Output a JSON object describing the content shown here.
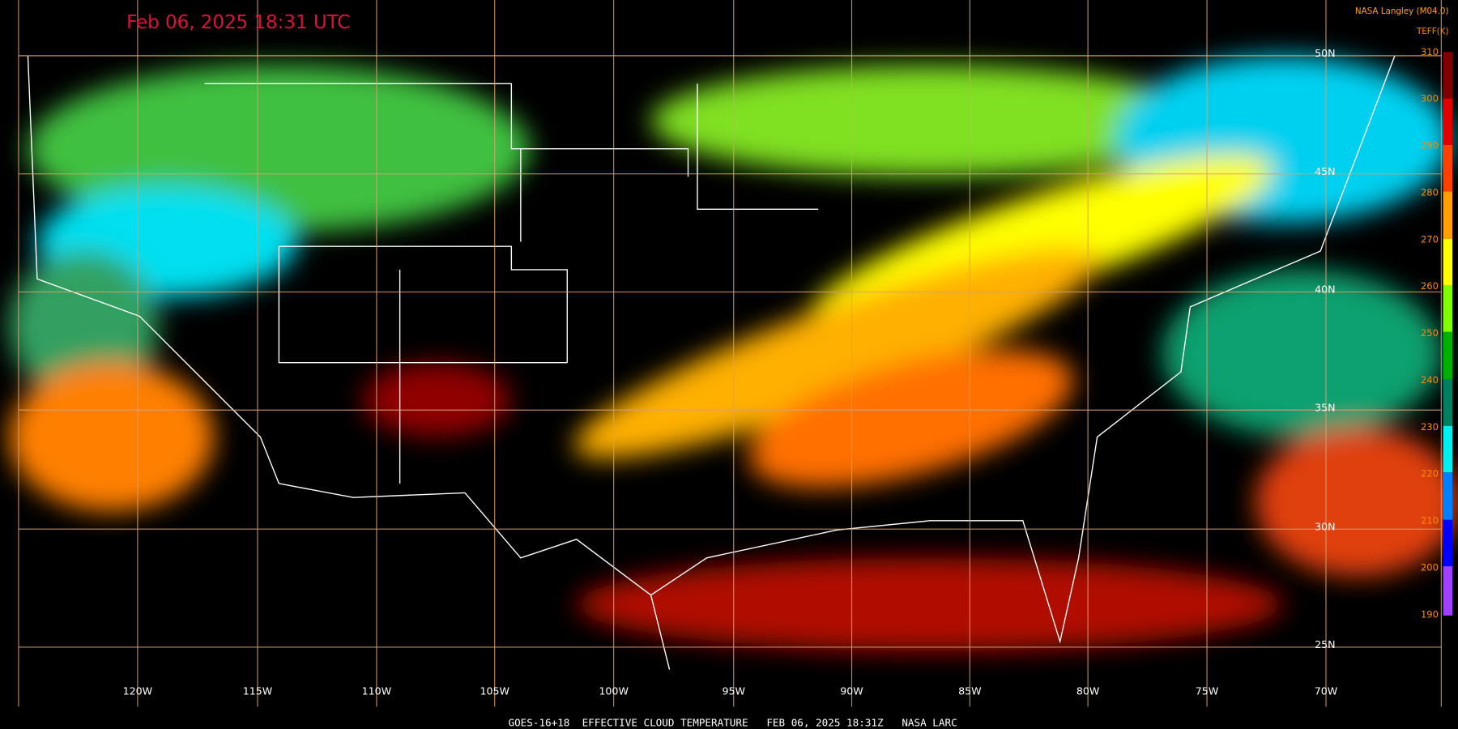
{
  "header": {
    "title": "Feb 06, 2025 18:31 UTC",
    "producer": "NASA Langley (M04.0)"
  },
  "colorbar": {
    "title": "TEFF(K)",
    "ticks": [
      310,
      300,
      290,
      280,
      270,
      260,
      250,
      240,
      230,
      220,
      210,
      200,
      190
    ]
  },
  "longitude_labels": [
    "120W",
    "115W",
    "110W",
    "105W",
    "100W",
    "95W",
    "90W",
    "85W",
    "80W",
    "75W",
    "70W"
  ],
  "latitude_labels": [
    "50N",
    "45N",
    "40N",
    "35N",
    "30N",
    "25N"
  ],
  "footer": "GOES-16+18  EFFECTIVE CLOUD TEMPERATURE   FEB 06, 2025 18:31Z   NASA LARC"
}
